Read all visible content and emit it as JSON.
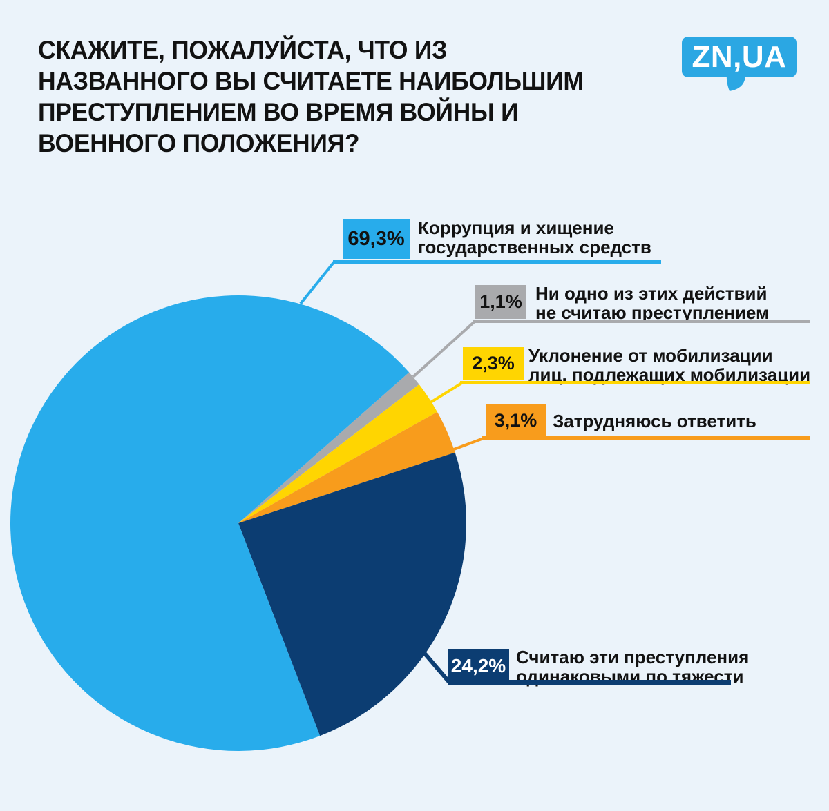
{
  "page": {
    "background": "#EBF3FA"
  },
  "title": {
    "lines": [
      "СКАЖИТЕ, ПОЖАЛУЙСТА, ЧТО ИЗ",
      "НАЗВАННОГО ВЫ СЧИТАЕТЕ НАИБОЛЬШИМ",
      "ПРЕСТУПЛЕНИЕМ ВО ВРЕМЯ ВОЙНЫ И",
      "ВОЕННОГО ПОЛОЖЕНИЯ?"
    ],
    "color": "#121212"
  },
  "logo": {
    "text": "ZN,UA",
    "color": "#2BA7E3",
    "text_color": "#FFFFFF"
  },
  "chart_data": {
    "type": "pie",
    "title": "СКАЖИТЕ, ПОЖАЛУЙСТА, ЧТО ИЗ НАЗВАННОГО ВЫ СЧИТАЕТЕ НАИБОЛЬШИМ ПРЕСТУПЛЕНИЕМ ВО ВРЕМЯ ВОЙНЫ И ВОЕННОГО ПОЛОЖЕНИЯ?",
    "unit": "%",
    "total": 100,
    "start_angle_deg": 41.5,
    "direction": "clockwise",
    "label_text_color": "#121212",
    "slices": [
      {
        "label": "Коррупция и хищение государственных средств",
        "label_lines": [
          "Коррупция и хищение",
          "государственных средств"
        ],
        "value": 69.3,
        "value_label": "69,3%",
        "color": "#28ACEB",
        "value_text_color": "#121212"
      },
      {
        "label": "Ни одно из этих действий не считаю преступлением",
        "label_lines": [
          "Ни одно из этих действий",
          "не считаю преступлением"
        ],
        "value": 1.1,
        "value_label": "1,1%",
        "color": "#A9AAAD",
        "value_text_color": "#121212"
      },
      {
        "label": "Уклонение от мобилизации лиц, подлежащих мобилизации",
        "label_lines": [
          "Уклонение от мобилизации",
          "лиц, подлежащих мобилизации"
        ],
        "value": 2.3,
        "value_label": "2,3%",
        "color": "#FFD501",
        "value_text_color": "#121212"
      },
      {
        "label": "Затрудняюсь ответить",
        "label_lines": [
          "Затрудняюсь ответить"
        ],
        "value": 3.1,
        "value_label": "3,1%",
        "color": "#F89C1C",
        "value_text_color": "#121212"
      },
      {
        "label": "Считаю эти преступления одинаковыми по тяжести",
        "label_lines": [
          "Считаю эти преступления",
          "одинаковыми по тяжести"
        ],
        "value": 24.2,
        "value_label": "24,2%",
        "color": "#0C3D72",
        "value_text_color": "#FFFFFF"
      }
    ],
    "draw_order": [
      1,
      2,
      3,
      4,
      0
    ]
  }
}
